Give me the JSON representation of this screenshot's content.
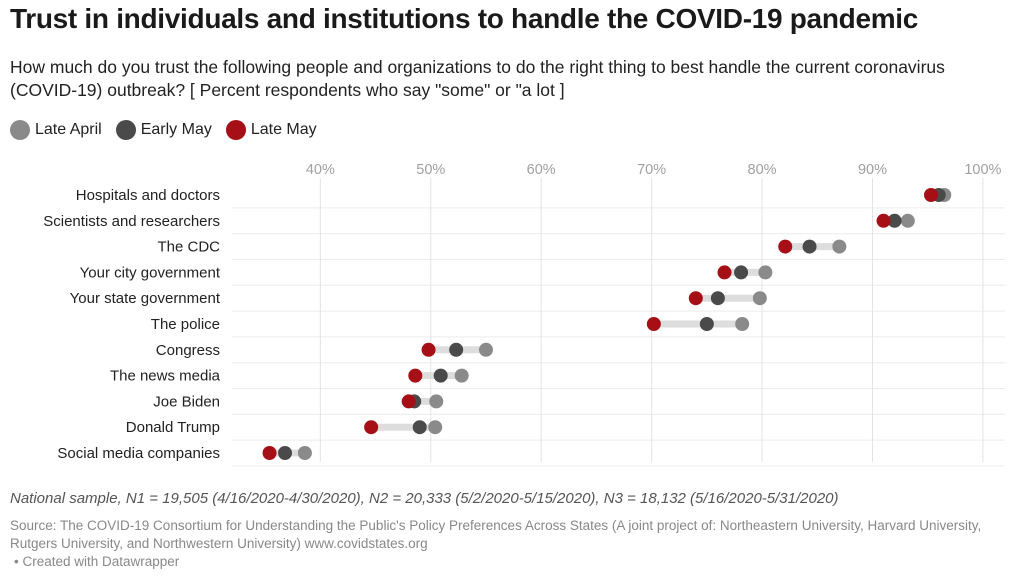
{
  "title": "Trust in individuals and institutions to handle the COVID-19 pandemic",
  "subtitle": "How much do you trust the following people and organizations to do the right thing to best handle the current coronavirus (COVID-19) outbreak? [ Percent respondents who say \"some\" or \"a lot ]",
  "legend": [
    {
      "label": "Late April",
      "color": "#8a8a8a"
    },
    {
      "label": "Early May",
      "color": "#4a4a4a"
    },
    {
      "label": "Late May",
      "color": "#a50f15"
    }
  ],
  "notes": "National sample, N1 = 19,505 (4/16/2020-4/30/2020), N2 = 20,333 (5/2/2020-5/15/2020), N3 = 18,132 (5/16/2020-5/31/2020)",
  "source": "Source: The COVID-19 Consortium for Understanding the Public's Policy Preferences Across States (A joint project of: Northeastern University, Harvard University, Rutgers University, and Northwestern University) www.covidstates.org",
  "credit": "• Created with Datawrapper",
  "chart_data": {
    "type": "dot",
    "xlim": [
      32,
      102
    ],
    "x_ticks": [
      40,
      50,
      60,
      70,
      80,
      90,
      100
    ],
    "x_tick_labels": [
      "40%",
      "50%",
      "60%",
      "70%",
      "80%",
      "90%",
      "100%"
    ],
    "grid": true,
    "legend_position": "top-left",
    "categories": [
      "Hospitals and doctors",
      "Scientists and researchers",
      "The CDC",
      "Your city government",
      "Your state government",
      "The police",
      "Congress",
      "The news media",
      "Joe Biden",
      "Donald Trump",
      "Social media companies"
    ],
    "series": [
      {
        "name": "Late April",
        "color": "#8a8a8a",
        "values": [
          96.5,
          93.2,
          87.0,
          80.3,
          79.8,
          78.2,
          55.0,
          52.8,
          50.5,
          50.4,
          38.6
        ]
      },
      {
        "name": "Early May",
        "color": "#4a4a4a",
        "values": [
          96.0,
          92.0,
          84.3,
          78.1,
          76.0,
          75.0,
          52.3,
          50.9,
          48.5,
          49.0,
          36.8
        ]
      },
      {
        "name": "Late May",
        "color": "#a50f15",
        "values": [
          95.3,
          91.0,
          82.1,
          76.6,
          74.0,
          70.2,
          49.8,
          48.6,
          48.0,
          44.6,
          35.4
        ]
      }
    ]
  }
}
